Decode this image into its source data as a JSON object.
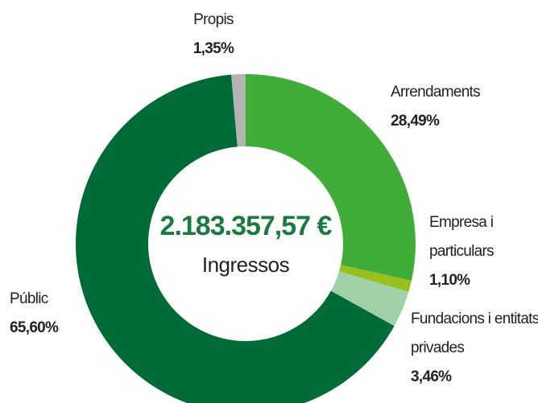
{
  "chart_data": {
    "type": "pie",
    "categories": [
      "Arrendaments",
      "Empresa i particulars",
      "Fundacions i entitats privades",
      "Públic",
      "Propis"
    ],
    "values": [
      28.49,
      1.1,
      3.46,
      65.6,
      1.35
    ],
    "value_labels": [
      "28,49%",
      "1,10%",
      "3,46%",
      "65,60%",
      "1,35%"
    ],
    "colors": [
      "#40ad39",
      "#97c11f",
      "#a0d2a9",
      "#006b36",
      "#b3b3b3"
    ],
    "center_value": "2.183.357,57 €",
    "center_label": "Ingressos"
  }
}
